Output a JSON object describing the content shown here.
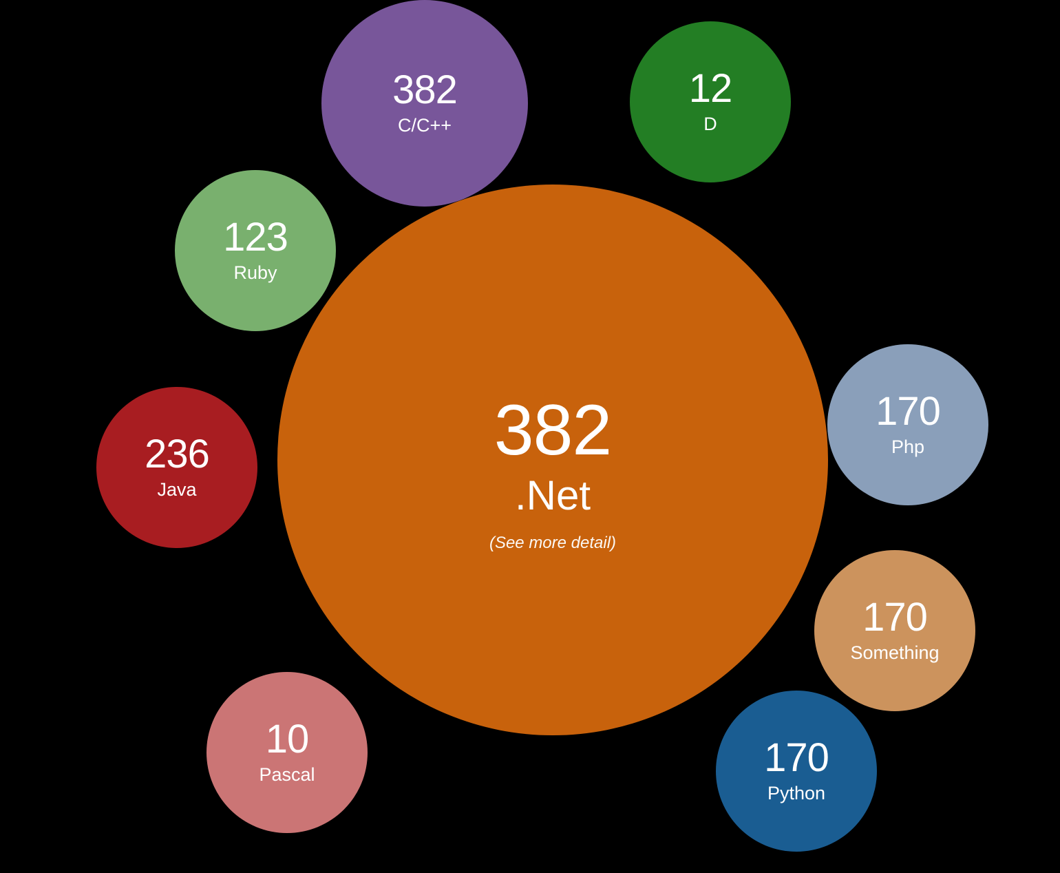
{
  "chart_data": {
    "type": "bubble",
    "title": "",
    "items": [
      {
        "id": "net",
        "label": ".Net",
        "value": 382,
        "note": "(See more detail)",
        "color": "#C8620C",
        "primary": true
      },
      {
        "id": "cpp",
        "label": "C/C++",
        "value": 382,
        "color": "#78569A"
      },
      {
        "id": "d",
        "label": "D",
        "value": 12,
        "color": "#237E24"
      },
      {
        "id": "ruby",
        "label": "Ruby",
        "value": 123,
        "color": "#79B06E"
      },
      {
        "id": "java",
        "label": "Java",
        "value": 236,
        "color": "#A81D21"
      },
      {
        "id": "php",
        "label": "Php",
        "value": 170,
        "color": "#8A9FBA"
      },
      {
        "id": "something",
        "label": "Something",
        "value": 170,
        "color": "#CC935D"
      },
      {
        "id": "python",
        "label": "Python",
        "value": 170,
        "color": "#1A5D92"
      },
      {
        "id": "pascal",
        "label": "Pascal",
        "value": 10,
        "color": "#CB7575"
      }
    ]
  }
}
